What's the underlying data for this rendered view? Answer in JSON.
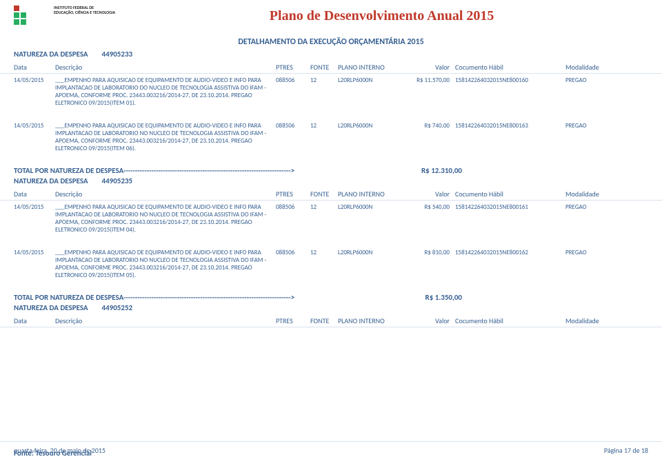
{
  "colors": {
    "primary_text": "#365f91",
    "title_red": "#c0392b",
    "logo_green": "#27ae60",
    "border": "#d9e2ec",
    "bg": "#ffffff"
  },
  "typography": {
    "title_font": "Georgia",
    "title_size_pt": 20,
    "subtitle_size_pt": 12,
    "body_size_pt": 10,
    "row_size_pt": 9
  },
  "institution": {
    "line1": "INSTITUTO FEDERAL DE",
    "line2": "EDUCAÇÃO, CIÊNCIA E TECNOLOGIA"
  },
  "title": "Plano de Desenvolvimento Anual 2015",
  "subtitle": "DETALHAMENTO DA EXECUÇÃO ORÇAMENTÁRIA 2015",
  "natureza_label": "NATUREZA DA DESPESA",
  "columns": {
    "data": "Data",
    "descricao": "Descrição",
    "ptres": "PTRES",
    "fonte": "FONTE",
    "plano": "PLANO INTERNO",
    "valor": "Valor",
    "doc": "Cocumento Hábil",
    "mod": "Modalidade"
  },
  "total_label": "TOTAL POR NATUREZA DE DESPESA------------------------------------------------------------------------>",
  "groups": [
    {
      "natureza": "44905233",
      "rows": [
        {
          "data": "14/05/2015",
          "desc": "___EMPENHO PARA AQUISICAO DE EQUIPAMENTO DE AUDIO-VIDEO E INFO PARA IMPLANTACAO DE LABORATORIO DO NUCLEO DE TECNOLOGIA ASSISTIVA DO IFAM - APOEMA, CONFORME PROC. 23443.003216/2014-27, DE 23.10.2014. PREGAO ELETRONICO 09/2015(ITEM 01).",
          "ptres": "088506",
          "fonte": "12",
          "plano": "L20RLP6000N",
          "valor": "R$ 11.570,00",
          "doc": "158142264032015NE800160",
          "mod": "PREGAO"
        },
        {
          "data": "14/05/2015",
          "desc": "___EMPENHO PARA AQUISICAO DE EQUIPAMENTO DE AUDIO-VIDEO E INFO PARA IMPLANTACAO DE LABORATORIO NO NUCLEO DE TECNOLOGIA ASSISTIVA DO IFAM - APOEMA, CONFORME PROC. 23443.003216/2014-27, DE 23.10.2014. PREGAO ELETRONICO 09/2015(ITEM 06).",
          "ptres": "088506",
          "fonte": "12",
          "plano": "L20RLP6000N",
          "valor": "R$ 740,00",
          "doc": "158142264032015NE800163",
          "mod": "PREGAO"
        }
      ],
      "total": "R$ 12.310,00"
    },
    {
      "natureza": "44905235",
      "rows": [
        {
          "data": "14/05/2015",
          "desc": "___EMPENHO PARA AQUISICAO DE EQUIPAMENTO DE AUDIO-VIDEO E INFO PARA IMPLANTACAO DE LABORATORIO NO NUCLEO DE TECNOLOGIA ASSISTIVA DO IFAM - APOEMA, CONFORME PROC. 23443.003216/2014-27, DE 23.10.2014. PREGAO ELETRONICO 09/2015(ITEM 04).",
          "ptres": "088506",
          "fonte": "12",
          "plano": "L20RLP6000N",
          "valor": "R$ 540,00",
          "doc": "158142264032015NE800161",
          "mod": "PREGAO"
        },
        {
          "data": "14/05/2015",
          "desc": "___EMPENHO PARA AQUISICAO DE EQUIPAMENTO DE AUDIO-VIDEO E INFO PARA IMPLANTACAO DE LABORATORIO NO NUCLEO DE TECNOLOGIA ASSISTIVA DO IFAM - APOEMA, CONFORME PROC. 23443.003216/2014-27, DE 23.10.2014. PREGAO ELETRONICO 09/2015(ITEM 05).",
          "ptres": "088506",
          "fonte": "12",
          "plano": "L20RLP6000N",
          "valor": "R$ 810,00",
          "doc": "158142264032015NE800162",
          "mod": "PREGAO"
        }
      ],
      "total": "R$ 1.350,00"
    },
    {
      "natureza": "44905252",
      "rows": [],
      "total": null
    }
  ],
  "footer": {
    "date": "quarta-feira, 20 de maio de 2015",
    "page": "Página 17 de 18",
    "source": "Fonte: Tesouro Gerencial"
  }
}
